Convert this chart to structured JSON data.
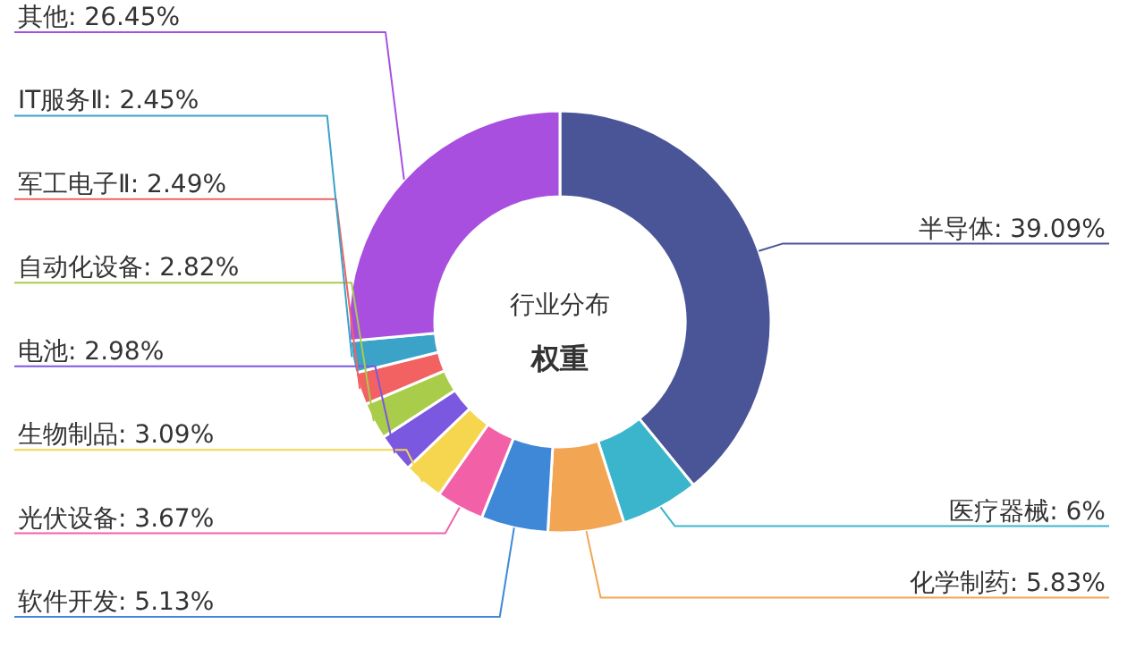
{
  "chart_data": {
    "type": "donut",
    "title": "行业分布",
    "subtitle": "权重",
    "categories": [
      "半导体",
      "医疗器械",
      "化学制药",
      "软件开发",
      "光伏设备",
      "生物制品",
      "电池",
      "自动化设备",
      "军工电子Ⅱ",
      "IT服务Ⅱ",
      "其他"
    ],
    "values": [
      39.09,
      6,
      5.83,
      5.13,
      3.67,
      3.09,
      2.98,
      2.82,
      2.49,
      2.45,
      26.45
    ],
    "value_labels": [
      "39.09%",
      "6%",
      "5.83%",
      "5.13%",
      "3.67%",
      "3.09%",
      "2.98%",
      "2.82%",
      "2.49%",
      "2.45%",
      "26.45%"
    ],
    "colors": [
      "#4a5597",
      "#3ab5cb",
      "#f2a553",
      "#3f88d8",
      "#f261a8",
      "#f5d64e",
      "#7b58e0",
      "#a9cc4a",
      "#f26262",
      "#3ba3c8",
      "#a94fe0"
    ]
  }
}
